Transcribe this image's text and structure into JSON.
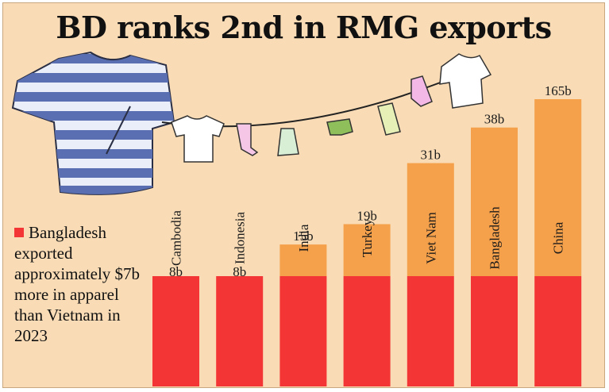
{
  "chart_data": {
    "type": "bar",
    "title": "BD ranks 2nd in RMG exports",
    "categories": [
      "Cambodia",
      "Indonesia",
      "India",
      "Turkey",
      "Viet Nam",
      "Bangladesh",
      "China"
    ],
    "values": [
      8,
      8,
      15,
      19,
      31,
      38,
      165
    ],
    "value_labels": [
      "8b",
      "8b",
      "15b",
      "19b",
      "31b",
      "38b",
      "165b"
    ],
    "xlabel": "",
    "ylabel": "",
    "grid": false,
    "legend_position": "left",
    "colors": {
      "bar_top": "#f5a04a",
      "bar_base": "#f43535",
      "background": "#f9dcb6"
    },
    "annotation": {
      "swatch_color": "#f43535",
      "text": "Bangladesh exported approximately $7b more in apparel than Vietnam in 2023"
    }
  },
  "illustration": {
    "icon": "clothesline-with-garments-icon"
  }
}
